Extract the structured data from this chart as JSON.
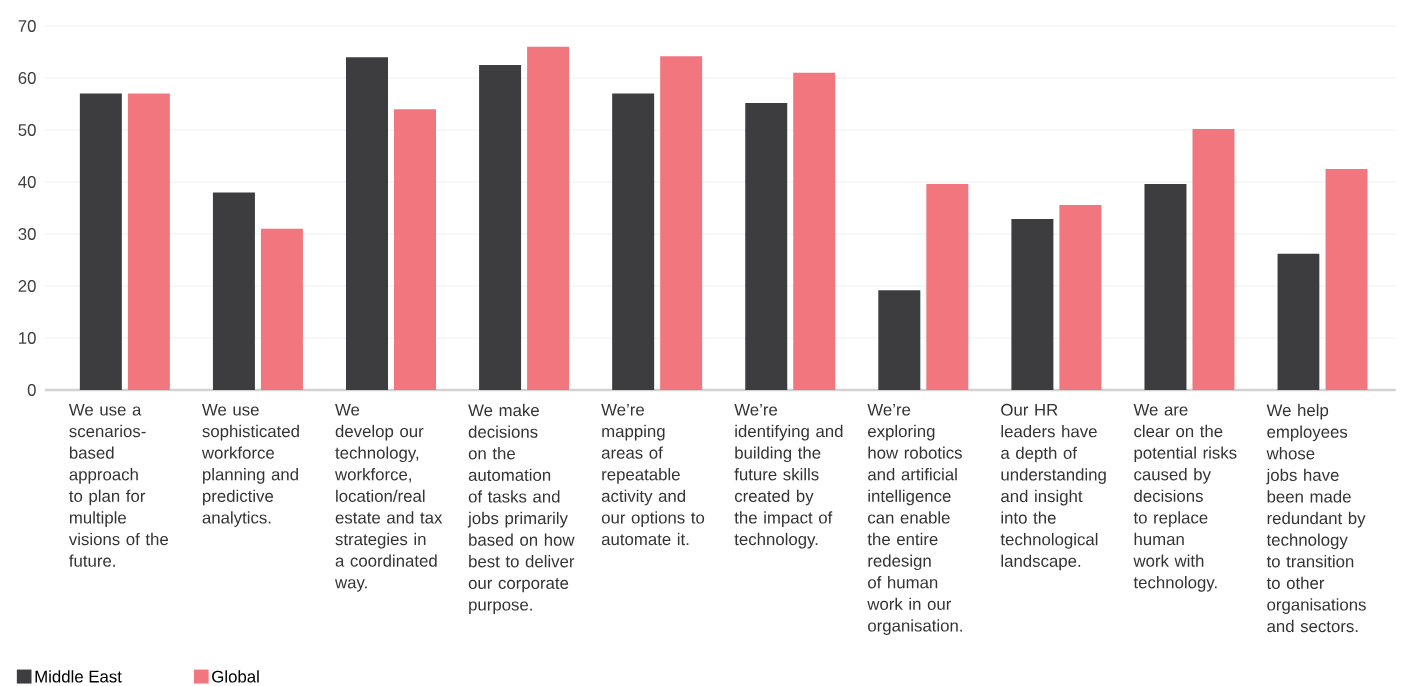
{
  "chart_data": {
    "type": "bar",
    "categories": [
      "We use a scenarios-based approach to plan for multiple visions of the future.",
      "We use sophisticated workforce planning and predictive analytics.",
      "We develop our technology, workforce, location/real estate and tax strategies in a coordinated way.",
      "We make decisions on the automation of tasks and jobs primarily based on how best to deliver our corporate purpose.",
      "We’re mapping areas of repeatable activity and our options to automate it.",
      "We’re identifying and building the future skills created by the impact of technology.",
      "We’re exploring how robotics and artificial intelligence can enable the entire redesign of human work in our organisation.",
      "Our HR leaders have a depth of understanding and insight into the technological landscape.",
      "We are clear on the potential risks caused by decisions to replace human work with technology.",
      "We help employees whose jobs have been made redundant by technology to transition to other organisations and sectors."
    ],
    "series": [
      {
        "name": "Middle East",
        "color": "#3d3c3f",
        "values": [
          57,
          38,
          64,
          62.5,
          57,
          55.2,
          19.2,
          32.9,
          39.6,
          26.2
        ]
      },
      {
        "name": "Global",
        "color": "#f2767e",
        "values": [
          57,
          31,
          54,
          66,
          64.2,
          61,
          39.6,
          35.6,
          50.2,
          42.5
        ]
      }
    ],
    "ylim": [
      0,
      70
    ],
    "yticks": [
      0,
      10,
      20,
      30,
      40,
      50,
      60,
      70
    ],
    "grid": "y",
    "legend": "bottom left"
  }
}
